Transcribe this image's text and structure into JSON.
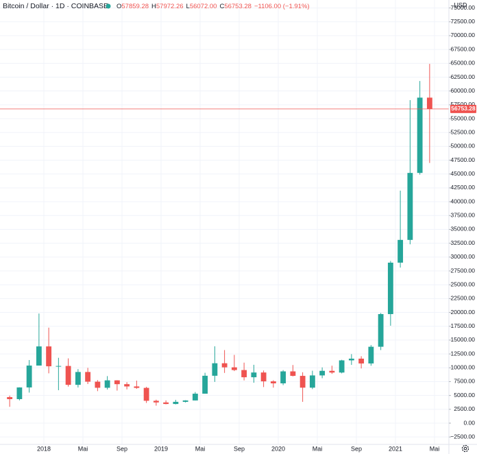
{
  "chart_data": {
    "type": "candlestick",
    "title": "Bitcoin / Dollar · 1D · COINBASE",
    "ohlc_legend": [
      {
        "key": "O",
        "value": "57859.28"
      },
      {
        "key": "H",
        "value": "57972.26"
      },
      {
        "key": "L",
        "value": "56072.00"
      },
      {
        "key": "C",
        "value": "56753.28"
      }
    ],
    "change": "−1106.00 (−1.91%)",
    "currency": "USD",
    "up_color": "#26a69a",
    "down_color": "#ef5350",
    "last_price": 56753.28,
    "grid": true,
    "x": [
      "2017-09",
      "2017-10",
      "2017-11",
      "2017-12",
      "2018-01",
      "2018-02",
      "2018-03",
      "2018-04",
      "2018-05",
      "2018-06",
      "2018-07",
      "2018-08",
      "2018-09",
      "2018-10",
      "2018-11",
      "2018-12",
      "2019-01",
      "2019-02",
      "2019-03",
      "2019-04",
      "2019-05",
      "2019-06",
      "2019-07",
      "2019-08",
      "2019-09",
      "2019-10",
      "2019-11",
      "2019-12",
      "2020-01",
      "2020-02",
      "2020-03",
      "2020-04",
      "2020-05",
      "2020-06",
      "2020-07",
      "2020-08",
      "2020-09",
      "2020-10",
      "2020-11",
      "2020-12",
      "2021-01",
      "2021-02",
      "2021-03",
      "2021-04"
    ],
    "open": [
      4700,
      4340,
      6450,
      10400,
      13860,
      10270,
      10330,
      6920,
      9240,
      7490,
      6390,
      7730,
      7040,
      6630,
      6370,
      4040,
      3740,
      3460,
      3850,
      4100,
      5320,
      8560,
      10820,
      10080,
      9590,
      8290,
      9150,
      7550,
      7190,
      9350,
      8540,
      6410,
      8620,
      9450,
      9140,
      11340,
      11650,
      10780,
      13800,
      19700,
      28990,
      33100,
      45200,
      58800
    ],
    "high": [
      4975,
      6470,
      11400,
      19800,
      17250,
      11800,
      11700,
      9760,
      9990,
      7780,
      8500,
      7760,
      7400,
      7680,
      6560,
      4240,
      4110,
      4210,
      4140,
      5620,
      9100,
      13880,
      13200,
      12330,
      10930,
      10540,
      9510,
      7750,
      9580,
      10500,
      9190,
      9470,
      10070,
      10380,
      11440,
      12470,
      12090,
      14100,
      19900,
      29300,
      42000,
      58350,
      61800,
      64900
    ],
    "low": [
      2950,
      4110,
      5520,
      10400,
      9000,
      5950,
      6600,
      6440,
      7060,
      5780,
      6070,
      5880,
      6100,
      6200,
      3650,
      3160,
      3400,
      3390,
      3730,
      4080,
      5320,
      7450,
      9070,
      9400,
      7720,
      7300,
      6520,
      6420,
      6870,
      8450,
      3850,
      6150,
      8120,
      8900,
      8990,
      10520,
      9880,
      10370,
      13200,
      17600,
      28100,
      32300,
      44900,
      47000
    ],
    "close": [
      4340,
      6450,
      10400,
      13860,
      10270,
      10330,
      6920,
      9240,
      7490,
      6390,
      7730,
      7040,
      6630,
      6370,
      4040,
      3740,
      3460,
      3850,
      4100,
      5320,
      8560,
      10820,
      10080,
      9590,
      8290,
      9150,
      7550,
      7190,
      9350,
      8540,
      6410,
      8620,
      9450,
      9140,
      11340,
      11650,
      10780,
      13800,
      19700,
      28990,
      33100,
      45200,
      58800,
      56753.28
    ],
    "xlim": [
      "2017-08",
      "2021-06"
    ],
    "xticks": [
      {
        "value": "2018-01",
        "label": "2018"
      },
      {
        "value": "2018-05",
        "label": "Mai"
      },
      {
        "value": "2018-09",
        "label": "Sep"
      },
      {
        "value": "2019-01",
        "label": "2019"
      },
      {
        "value": "2019-05",
        "label": "Mai"
      },
      {
        "value": "2019-09",
        "label": "Sep"
      },
      {
        "value": "2020-01",
        "label": "2020"
      },
      {
        "value": "2020-05",
        "label": "Mai"
      },
      {
        "value": "2020-09",
        "label": "Sep"
      },
      {
        "value": "2021-01",
        "label": "2021"
      },
      {
        "value": "2021-05",
        "label": "Mai"
      }
    ],
    "ylim": [
      -3840,
      76437
    ],
    "yticks": [
      {
        "value": -2500,
        "label": "−2500.00"
      },
      {
        "value": 0,
        "label": "0.00"
      },
      {
        "value": 2500,
        "label": "2500.00"
      },
      {
        "value": 5000,
        "label": "5000.00"
      },
      {
        "value": 7500,
        "label": "7500.00"
      },
      {
        "value": 10000,
        "label": "10000.00"
      },
      {
        "value": 12500,
        "label": "12500.00"
      },
      {
        "value": 15000,
        "label": "15000.00"
      },
      {
        "value": 17500,
        "label": "17500.00"
      },
      {
        "value": 20000,
        "label": "20000.00"
      },
      {
        "value": 22500,
        "label": "22500.00"
      },
      {
        "value": 25000,
        "label": "25000.00"
      },
      {
        "value": 27500,
        "label": "27500.00"
      },
      {
        "value": 30000,
        "label": "30000.00"
      },
      {
        "value": 32500,
        "label": "32500.00"
      },
      {
        "value": 35000,
        "label": "35000.00"
      },
      {
        "value": 37500,
        "label": "37500.00"
      },
      {
        "value": 40000,
        "label": "40000.00"
      },
      {
        "value": 42500,
        "label": "42500.00"
      },
      {
        "value": 45000,
        "label": "45000.00"
      },
      {
        "value": 47500,
        "label": "47500.00"
      },
      {
        "value": 50000,
        "label": "50000.00"
      },
      {
        "value": 52500,
        "label": "52500.00"
      },
      {
        "value": 55000,
        "label": "55000.00"
      },
      {
        "value": 57500,
        "label": "57500.00"
      },
      {
        "value": 60000,
        "label": "60000.00"
      },
      {
        "value": 62500,
        "label": "62500.00"
      },
      {
        "value": 65000,
        "label": "65000.00"
      },
      {
        "value": 67500,
        "label": "67500.00"
      },
      {
        "value": 70000,
        "label": "70000.00"
      },
      {
        "value": 72500,
        "label": "72500.00"
      },
      {
        "value": 75000,
        "label": "75000.00"
      }
    ]
  }
}
